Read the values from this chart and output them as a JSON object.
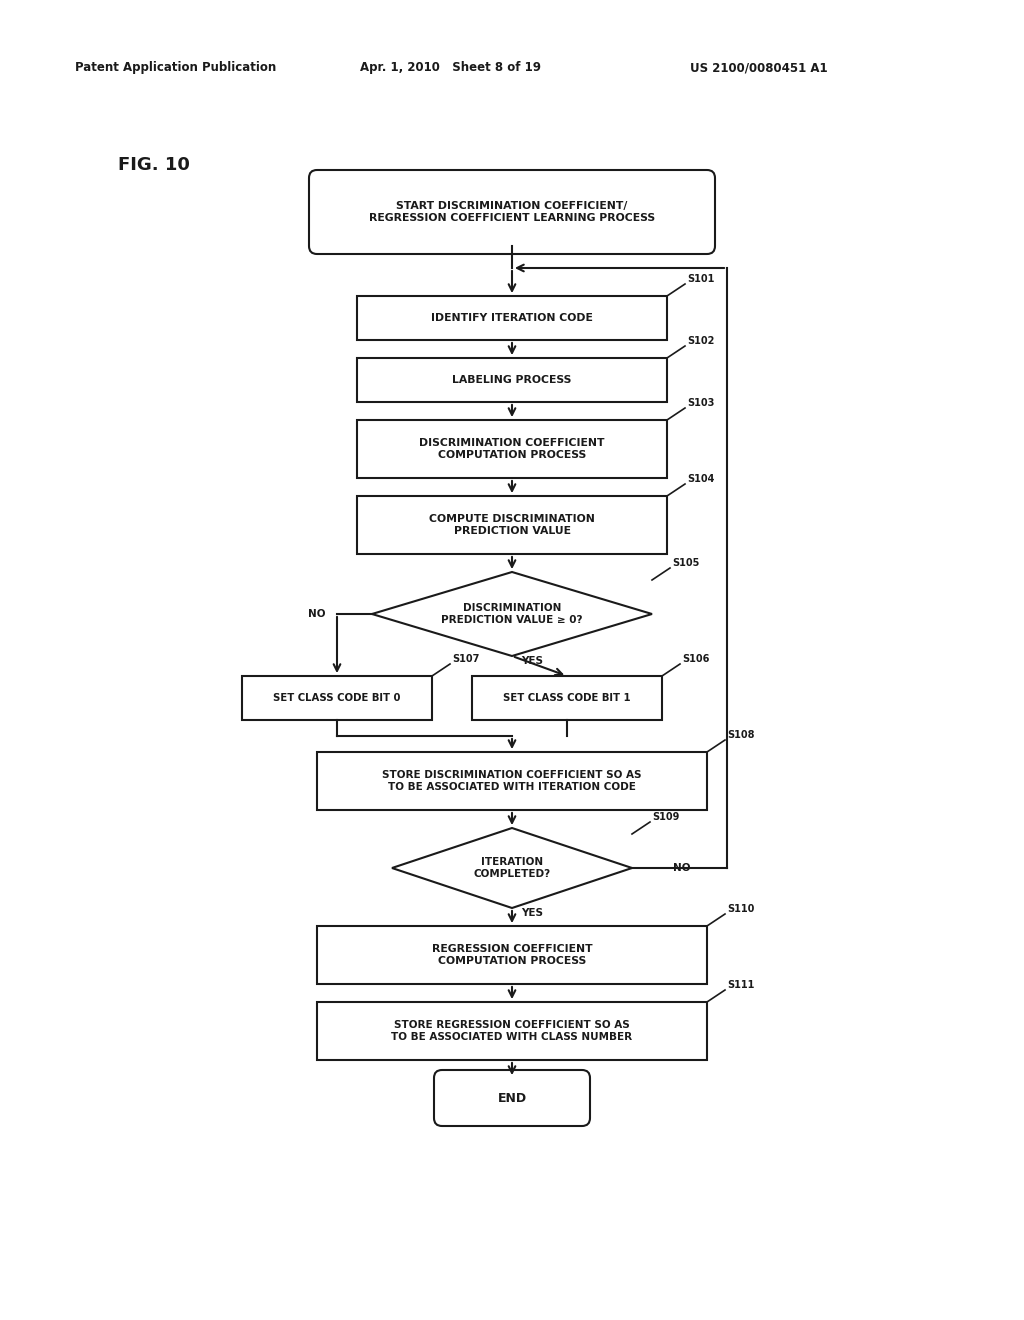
{
  "bg_color": "#ffffff",
  "line_color": "#1a1a1a",
  "text_color": "#1a1a1a",
  "header_left": "Patent Application Publication",
  "header_mid": "Apr. 1, 2010   Sheet 8 of 19",
  "header_right": "US 2100/0080451 A1",
  "fig_label": "FIG. 10",
  "lw": 1.5,
  "font_size_box": 7.5,
  "font_size_small": 7.0,
  "font_size_header": 8.5,
  "font_size_fig": 13
}
